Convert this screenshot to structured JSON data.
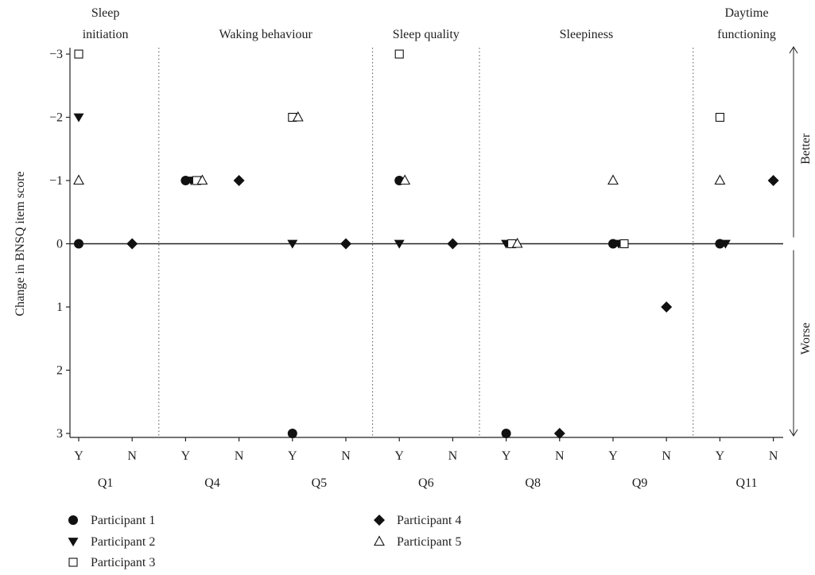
{
  "chart_data": {
    "type": "scatter",
    "ylabel": "Change in BNSQ item score",
    "yticks": [
      -3,
      -2,
      -1,
      0,
      1,
      2,
      3
    ],
    "ylim": [
      -3,
      3
    ],
    "y_inverted": true,
    "sections": [
      {
        "title": [
          "Sleep",
          "initiation"
        ],
        "questions": [
          "Q1"
        ]
      },
      {
        "title": [
          "Waking behaviour"
        ],
        "questions": [
          "Q4",
          "Q5"
        ]
      },
      {
        "title": [
          "Sleep quality"
        ],
        "questions": [
          "Q6"
        ]
      },
      {
        "title": [
          "Sleepiness"
        ],
        "questions": [
          "Q8",
          "Q9"
        ]
      },
      {
        "title": [
          "Daytime",
          "functioning"
        ],
        "questions": [
          "Q11"
        ]
      }
    ],
    "questions": [
      "Q1",
      "Q4",
      "Q5",
      "Q6",
      "Q8",
      "Q9",
      "Q11"
    ],
    "answers": [
      "Y",
      "N"
    ],
    "side_labels": {
      "better": "Better",
      "worse": "Worse"
    },
    "series": [
      {
        "name": "Participant 1",
        "marker": "circle",
        "points": [
          {
            "q": "Q1",
            "a": "Y",
            "v": 0
          },
          {
            "q": "Q4",
            "a": "Y",
            "v": -1
          },
          {
            "q": "Q5",
            "a": "Y",
            "v": 3
          },
          {
            "q": "Q6",
            "a": "Y",
            "v": -1
          },
          {
            "q": "Q8",
            "a": "Y",
            "v": 3
          },
          {
            "q": "Q9",
            "a": "Y",
            "v": 0
          },
          {
            "q": "Q11",
            "a": "Y",
            "v": 0
          }
        ]
      },
      {
        "name": "Participant 2",
        "marker": "triangle-down",
        "points": [
          {
            "q": "Q1",
            "a": "Y",
            "v": -2
          },
          {
            "q": "Q4",
            "a": "Y",
            "v": -1
          },
          {
            "q": "Q5",
            "a": "Y",
            "v": 0
          },
          {
            "q": "Q6",
            "a": "Y",
            "v": 0
          },
          {
            "q": "Q8",
            "a": "Y",
            "v": 0
          },
          {
            "q": "Q9",
            "a": "Y",
            "v": 0
          },
          {
            "q": "Q11",
            "a": "Y",
            "v": 0
          }
        ]
      },
      {
        "name": "Participant 3",
        "marker": "square-open",
        "points": [
          {
            "q": "Q1",
            "a": "Y",
            "v": -3
          },
          {
            "q": "Q4",
            "a": "Y",
            "v": -1
          },
          {
            "q": "Q5",
            "a": "Y",
            "v": -2
          },
          {
            "q": "Q6",
            "a": "Y",
            "v": -3
          },
          {
            "q": "Q8",
            "a": "Y",
            "v": 0
          },
          {
            "q": "Q9",
            "a": "Y",
            "v": 0
          },
          {
            "q": "Q11",
            "a": "Y",
            "v": -2
          }
        ]
      },
      {
        "name": "Participant 4",
        "marker": "diamond",
        "points": [
          {
            "q": "Q1",
            "a": "N",
            "v": 0
          },
          {
            "q": "Q4",
            "a": "N",
            "v": -1
          },
          {
            "q": "Q5",
            "a": "N",
            "v": 0
          },
          {
            "q": "Q6",
            "a": "N",
            "v": 0
          },
          {
            "q": "Q8",
            "a": "N",
            "v": 3
          },
          {
            "q": "Q9",
            "a": "N",
            "v": 1
          },
          {
            "q": "Q11",
            "a": "N",
            "v": -1
          }
        ]
      },
      {
        "name": "Participant 5",
        "marker": "triangle-up-open",
        "points": [
          {
            "q": "Q1",
            "a": "Y",
            "v": -1
          },
          {
            "q": "Q4",
            "a": "Y",
            "v": -1
          },
          {
            "q": "Q5",
            "a": "Y",
            "v": -2
          },
          {
            "q": "Q6",
            "a": "Y",
            "v": -1
          },
          {
            "q": "Q8",
            "a": "Y",
            "v": 0
          },
          {
            "q": "Q9",
            "a": "Y",
            "v": -1
          },
          {
            "q": "Q11",
            "a": "Y",
            "v": -1
          }
        ]
      }
    ]
  }
}
